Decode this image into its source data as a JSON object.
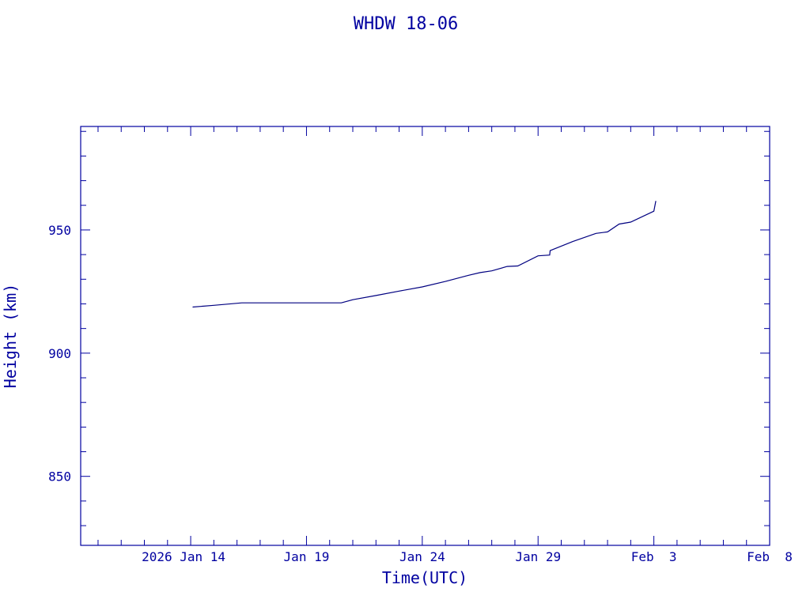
{
  "chart_data": {
    "type": "line",
    "title": "WHDW 18-06",
    "xlabel": "Time(UTC)",
    "ylabel": "Height (km)",
    "x_ticks": [
      {
        "date": "2026-01-14",
        "label": "2026 Jan 14"
      },
      {
        "date": "2026-01-19",
        "label": "Jan 19"
      },
      {
        "date": "2026-01-24",
        "label": "Jan 24"
      },
      {
        "date": "2026-01-29",
        "label": "Jan 29"
      },
      {
        "date": "2026-02-03",
        "label": "Feb  3"
      },
      {
        "date": "2026-02-08",
        "label": "Feb  8"
      }
    ],
    "y_ticks": [
      850,
      900,
      950
    ],
    "xlim": [
      "2026-01-09T06:00",
      "2026-02-08"
    ],
    "ylim": [
      822,
      992
    ],
    "grid": false,
    "series": [
      {
        "color": "#000080",
        "points": [
          {
            "x": "2026-01-14T02:00",
            "y": 918.7
          },
          {
            "x": "2026-01-15T00:00",
            "y": 919.4
          },
          {
            "x": "2026-01-16T05:00",
            "y": 920.4
          },
          {
            "x": "2026-01-17T12:00",
            "y": 920.4
          },
          {
            "x": "2026-01-19T00:00",
            "y": 920.4
          },
          {
            "x": "2026-01-20T12:00",
            "y": 920.4
          },
          {
            "x": "2026-01-21T00:00",
            "y": 921.7
          },
          {
            "x": "2026-01-22T00:00",
            "y": 923.4
          },
          {
            "x": "2026-01-23T00:00",
            "y": 925.2
          },
          {
            "x": "2026-01-24T00:00",
            "y": 926.9
          },
          {
            "x": "2026-01-25T00:00",
            "y": 929.1
          },
          {
            "x": "2026-01-26T00:00",
            "y": 931.6
          },
          {
            "x": "2026-01-26T12:00",
            "y": 932.7
          },
          {
            "x": "2026-01-27T00:00",
            "y": 933.4
          },
          {
            "x": "2026-01-27T16:00",
            "y": 935.2
          },
          {
            "x": "2026-01-28T03:00",
            "y": 935.4
          },
          {
            "x": "2026-01-29T00:00",
            "y": 939.5
          },
          {
            "x": "2026-01-29T12:00",
            "y": 939.8
          },
          {
            "x": "2026-01-29T12:30",
            "y": 941.6
          },
          {
            "x": "2026-01-30T12:00",
            "y": 945.3
          },
          {
            "x": "2026-01-31T12:00",
            "y": 948.6
          },
          {
            "x": "2026-02-01T00:00",
            "y": 949.2
          },
          {
            "x": "2026-02-01T12:00",
            "y": 952.4
          },
          {
            "x": "2026-02-02T00:00",
            "y": 953.2
          },
          {
            "x": "2026-02-03T00:00",
            "y": 957.6
          },
          {
            "x": "2026-02-03T02:00",
            "y": 961.8
          }
        ]
      }
    ]
  }
}
